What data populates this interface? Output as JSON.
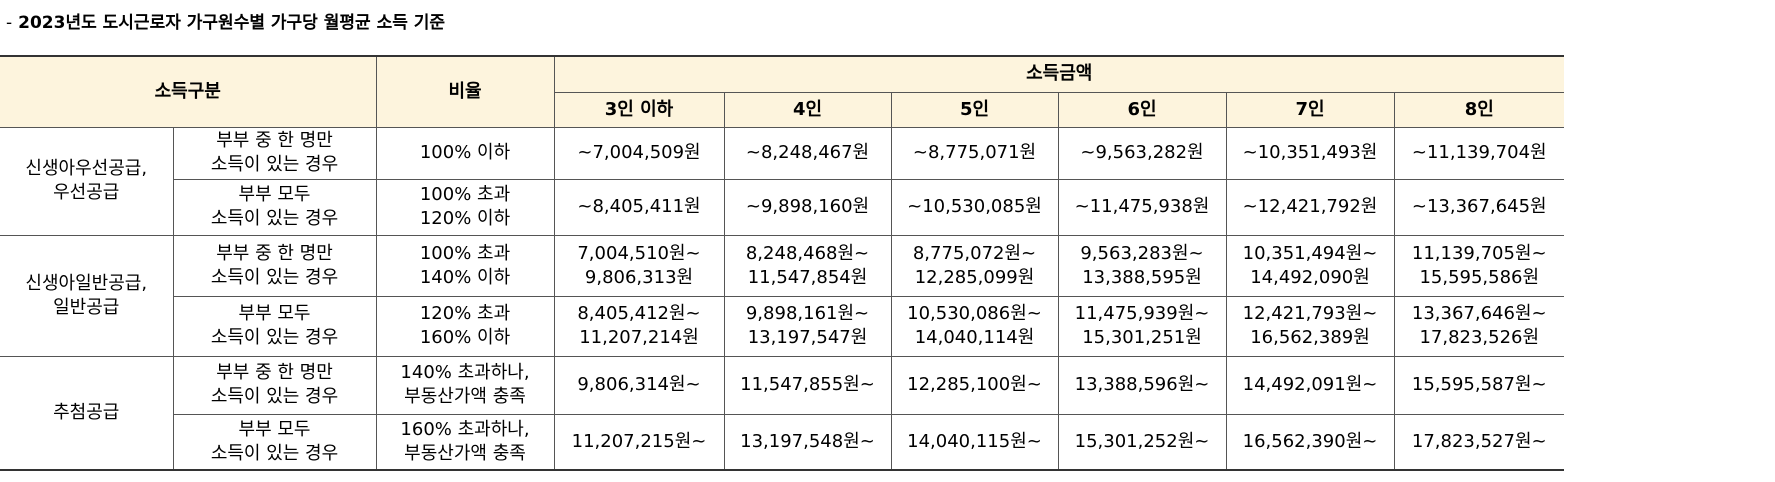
{
  "title": {
    "dash": "-",
    "text": "2023년도 도시근로자 가구원수별 가구당 월평균 소득 기준"
  },
  "headers": {
    "category": "소득구분",
    "ratio": "비율",
    "amount": "소득금액",
    "sizes": [
      "3인 이하",
      "4인",
      "5인",
      "6인",
      "7인",
      "8인"
    ]
  },
  "groups": [
    {
      "name_lines": [
        "신생아우선공급,",
        "우선공급"
      ],
      "rows": [
        {
          "sub": [
            "부부 중 한 명만",
            "소득이 있는 경우"
          ],
          "ratio": [
            "100% 이하"
          ],
          "values": [
            [
              "~7,004,509원"
            ],
            [
              "~8,248,467원"
            ],
            [
              "~8,775,071원"
            ],
            [
              "~9,563,282원"
            ],
            [
              "~10,351,493원"
            ],
            [
              "~11,139,704원"
            ]
          ]
        },
        {
          "sub": [
            "부부 모두",
            "소득이 있는 경우"
          ],
          "ratio": [
            "100% 초과",
            "120% 이하"
          ],
          "values": [
            [
              "~8,405,411원"
            ],
            [
              "~9,898,160원"
            ],
            [
              "~10,530,085원"
            ],
            [
              "~11,475,938원"
            ],
            [
              "~12,421,792원"
            ],
            [
              "~13,367,645원"
            ]
          ]
        }
      ]
    },
    {
      "name_lines": [
        "신생아일반공급,",
        "일반공급"
      ],
      "rows": [
        {
          "sub": [
            "부부 중 한 명만",
            "소득이 있는 경우"
          ],
          "ratio": [
            "100% 초과",
            "140% 이하"
          ],
          "values": [
            [
              "7,004,510원~",
              "9,806,313원"
            ],
            [
              "8,248,468원~",
              "11,547,854원"
            ],
            [
              "8,775,072원~",
              "12,285,099원"
            ],
            [
              "9,563,283원~",
              "13,388,595원"
            ],
            [
              "10,351,494원~",
              "14,492,090원"
            ],
            [
              "11,139,705원~",
              "15,595,586원"
            ]
          ]
        },
        {
          "sub": [
            "부부 모두",
            "소득이 있는 경우"
          ],
          "ratio": [
            "120% 초과",
            "160% 이하"
          ],
          "values": [
            [
              "8,405,412원~",
              "11,207,214원"
            ],
            [
              "9,898,161원~",
              "13,197,547원"
            ],
            [
              "10,530,086원~",
              "14,040,114원"
            ],
            [
              "11,475,939원~",
              "15,301,251원"
            ],
            [
              "12,421,793원~",
              "16,562,389원"
            ],
            [
              "13,367,646원~",
              "17,823,526원"
            ]
          ]
        }
      ]
    },
    {
      "name_lines": [
        "추첨공급"
      ],
      "rows": [
        {
          "sub": [
            "부부 중 한 명만",
            "소득이 있는 경우"
          ],
          "ratio": [
            "140% 초과하나,",
            "부동산가액 충족"
          ],
          "values": [
            [
              "9,806,314원~"
            ],
            [
              "11,547,855원~"
            ],
            [
              "12,285,100원~"
            ],
            [
              "13,388,596원~"
            ],
            [
              "14,492,091원~"
            ],
            [
              "15,595,587원~"
            ]
          ]
        },
        {
          "sub": [
            "부부 모두",
            "소득이 있는 경우"
          ],
          "ratio": [
            "160% 초과하나,",
            "부동산가액 충족"
          ],
          "values": [
            [
              "11,207,215원~"
            ],
            [
              "13,197,548원~"
            ],
            [
              "14,040,115원~"
            ],
            [
              "15,301,252원~"
            ],
            [
              "16,562,390원~"
            ],
            [
              "17,823,527원~"
            ]
          ]
        }
      ]
    }
  ]
}
